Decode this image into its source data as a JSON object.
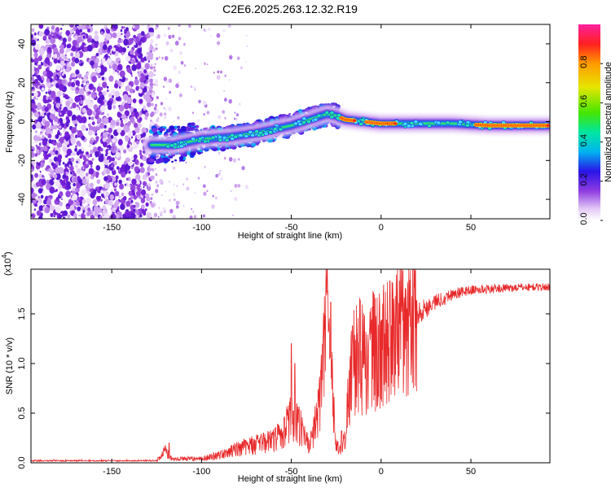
{
  "title": "C2E6.2025.263.12.32.R19",
  "chart_data": [
    {
      "type": "heatmap",
      "xlabel": "Height of straight line (km)",
      "ylabel": "Frequency (Hz)",
      "xlim": [
        -195,
        94
      ],
      "ylim": [
        -50,
        50
      ],
      "x_ticks": [
        -150,
        -100,
        -50,
        0,
        50
      ],
      "y_ticks": [
        -40,
        -20,
        0,
        20,
        40
      ],
      "colorbar": {
        "label": "Normalized spectral amplitude",
        "range": [
          0,
          1
        ],
        "ticks": [
          "0.0",
          "0.2",
          "0.4",
          "0.6",
          "0.8"
        ]
      },
      "ridge": {
        "x": [
          -128,
          -115,
          -100,
          -85,
          -70,
          -60,
          -50,
          -40,
          -30,
          -25,
          -20,
          -10,
          0,
          20,
          40,
          60,
          80,
          94
        ],
        "y": [
          -12,
          -12,
          -9,
          -8,
          -6,
          -4,
          -2,
          1,
          4,
          3,
          1,
          0,
          -1,
          -1,
          -1,
          -2,
          -2,
          -2
        ]
      },
      "noise_region_x": [
        -195,
        -128
      ],
      "grid": false,
      "legend": "colorbar-right"
    },
    {
      "type": "line",
      "xlabel": "Height of straight line (km)",
      "ylabel": "SNR (10 * v/v)",
      "y_exponent_label": "(x10",
      "y_exponent_sup": "4",
      "y_exponent_close": ")",
      "xlim": [
        -195,
        94
      ],
      "ylim": [
        0,
        1.95
      ],
      "x_ticks": [
        -150,
        -100,
        -50,
        0,
        50
      ],
      "y_ticks": [
        "0.0",
        "0.5",
        "1.0",
        "1.5"
      ],
      "y_tick_values": [
        0,
        0.5,
        1.0,
        1.5
      ],
      "color": "#e8292a",
      "envelope": {
        "x": [
          -195,
          -125,
          -120,
          -116,
          -110,
          -100,
          -90,
          -80,
          -70,
          -60,
          -55,
          -50,
          -45,
          -40,
          -35,
          -32,
          -30,
          -28,
          -25,
          -22,
          -20,
          -17,
          -15,
          -10,
          -5,
          0,
          10,
          20,
          30,
          40,
          50,
          60,
          70,
          80,
          94
        ],
        "y": [
          0.02,
          0.02,
          0.12,
          0.03,
          0.04,
          0.04,
          0.08,
          0.14,
          0.18,
          0.22,
          0.3,
          0.45,
          0.35,
          0.15,
          0.5,
          1.1,
          1.5,
          0.9,
          0.2,
          0.08,
          0.3,
          0.9,
          1.05,
          1.05,
          1.1,
          1.15,
          1.3,
          1.5,
          1.62,
          1.7,
          1.74,
          1.75,
          1.76,
          1.77,
          1.77
        ]
      },
      "spikes": [
        {
          "x": -118,
          "y": 0.2
        },
        {
          "x": -50,
          "y": 1.2
        },
        {
          "x": -48,
          "y": 1.0
        },
        {
          "x": -30,
          "y": 1.95
        },
        {
          "x": -28,
          "y": 1.62
        },
        {
          "x": -22,
          "y": 0.32
        },
        {
          "x": -16,
          "y": 1.38
        }
      ],
      "grid": false,
      "legend": "none"
    }
  ]
}
